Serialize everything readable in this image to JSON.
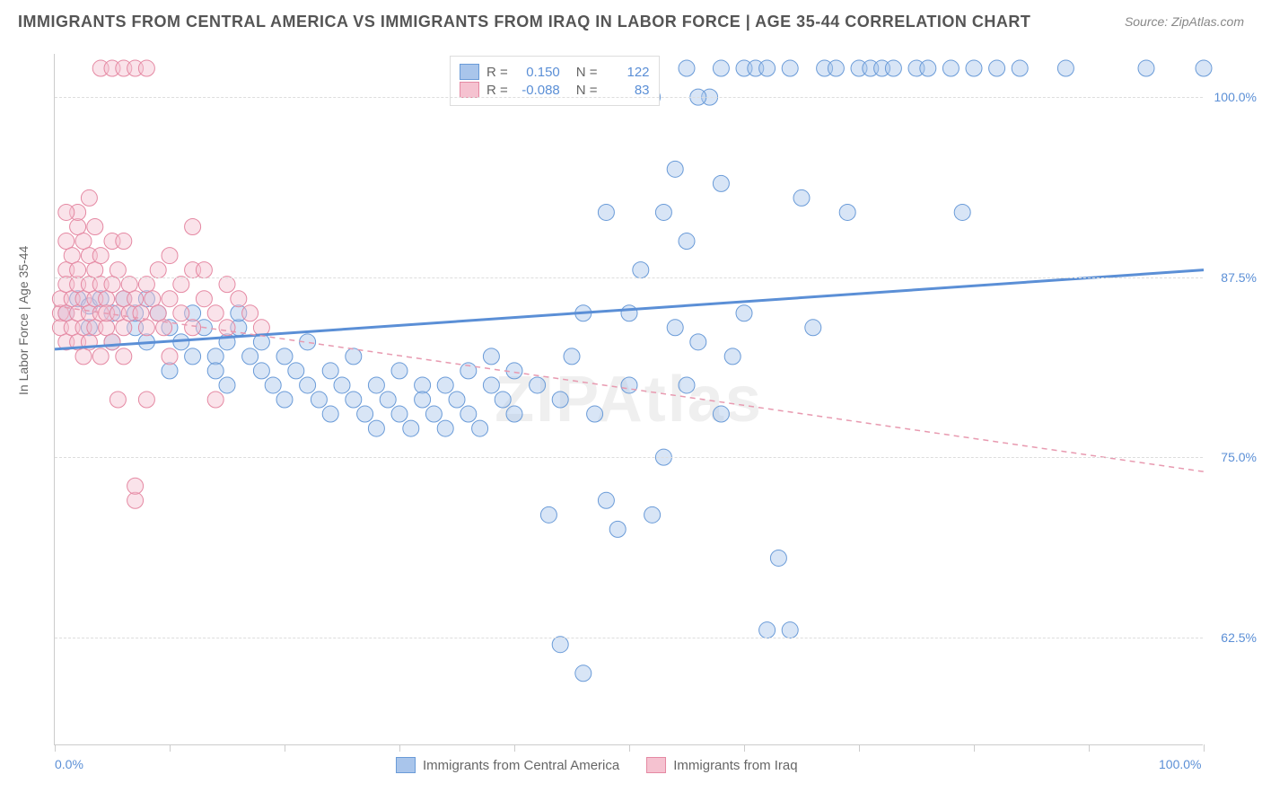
{
  "title": "IMMIGRANTS FROM CENTRAL AMERICA VS IMMIGRANTS FROM IRAQ IN LABOR FORCE | AGE 35-44 CORRELATION CHART",
  "source": "Source: ZipAtlas.com",
  "watermark": "ZIPAtlas",
  "y_axis_label": "In Labor Force | Age 35-44",
  "chart": {
    "type": "scatter",
    "background_color": "#ffffff",
    "grid_color": "#dddddd",
    "axis_color": "#cccccc",
    "text_color": "#666666",
    "value_color": "#5b8fd6",
    "xlim": [
      0,
      100
    ],
    "ylim": [
      55,
      103
    ],
    "x_ticks": [
      0,
      10,
      20,
      30,
      40,
      50,
      60,
      70,
      80,
      90,
      100
    ],
    "x_axis_labels": [
      {
        "pos": 0,
        "label": "0.0%"
      },
      {
        "pos": 100,
        "label": "100.0%"
      }
    ],
    "y_gridlines": [
      {
        "val": 62.5,
        "label": "62.5%"
      },
      {
        "val": 75.0,
        "label": "75.0%"
      },
      {
        "val": 87.5,
        "label": "87.5%"
      },
      {
        "val": 100.0,
        "label": "100.0%"
      }
    ],
    "marker_radius": 9,
    "marker_opacity": 0.45,
    "series": [
      {
        "name": "Immigrants from Central America",
        "color": "#5b8fd6",
        "fill": "#a9c5eb",
        "stroke": "#6a9bd8",
        "R": "0.150",
        "N": "122",
        "trend": {
          "y_at_x0": 82.5,
          "y_at_x100": 88.0,
          "width": 3,
          "dash": "none"
        },
        "points": [
          [
            1,
            85
          ],
          [
            2,
            86
          ],
          [
            3,
            85.5
          ],
          [
            3,
            84
          ],
          [
            4,
            86
          ],
          [
            5,
            85
          ],
          [
            5,
            83
          ],
          [
            6,
            86
          ],
          [
            7,
            84
          ],
          [
            7,
            85
          ],
          [
            8,
            86
          ],
          [
            8,
            83
          ],
          [
            9,
            85
          ],
          [
            10,
            81
          ],
          [
            10,
            84
          ],
          [
            11,
            83
          ],
          [
            12,
            85
          ],
          [
            12,
            82
          ],
          [
            13,
            84
          ],
          [
            14,
            82
          ],
          [
            14,
            81
          ],
          [
            15,
            83
          ],
          [
            15,
            80
          ],
          [
            16,
            84
          ],
          [
            16,
            85
          ],
          [
            17,
            82
          ],
          [
            18,
            81
          ],
          [
            18,
            83
          ],
          [
            19,
            80
          ],
          [
            20,
            82
          ],
          [
            20,
            79
          ],
          [
            21,
            81
          ],
          [
            22,
            83
          ],
          [
            22,
            80
          ],
          [
            23,
            79
          ],
          [
            24,
            81
          ],
          [
            24,
            78
          ],
          [
            25,
            80
          ],
          [
            26,
            79
          ],
          [
            26,
            82
          ],
          [
            27,
            78
          ],
          [
            28,
            80
          ],
          [
            28,
            77
          ],
          [
            29,
            79
          ],
          [
            30,
            81
          ],
          [
            30,
            78
          ],
          [
            31,
            77
          ],
          [
            32,
            80
          ],
          [
            32,
            79
          ],
          [
            33,
            78
          ],
          [
            34,
            77
          ],
          [
            34,
            80
          ],
          [
            35,
            79
          ],
          [
            36,
            78
          ],
          [
            36,
            81
          ],
          [
            37,
            77
          ],
          [
            38,
            80
          ],
          [
            38,
            82
          ],
          [
            39,
            79
          ],
          [
            40,
            78
          ],
          [
            40,
            81
          ],
          [
            42,
            80
          ],
          [
            43,
            71
          ],
          [
            44,
            62
          ],
          [
            44,
            79
          ],
          [
            45,
            82
          ],
          [
            46,
            60
          ],
          [
            46,
            85
          ],
          [
            47,
            78
          ],
          [
            48,
            72
          ],
          [
            48,
            92
          ],
          [
            49,
            70
          ],
          [
            50,
            85
          ],
          [
            50,
            80
          ],
          [
            52,
            71
          ],
          [
            53,
            92
          ],
          [
            54,
            84
          ],
          [
            55,
            80
          ],
          [
            55,
            102
          ],
          [
            56,
            83
          ],
          [
            57,
            100
          ],
          [
            58,
            78
          ],
          [
            58,
            102
          ],
          [
            59,
            82
          ],
          [
            60,
            102
          ],
          [
            60,
            85
          ],
          [
            61,
            102
          ],
          [
            62,
            63
          ],
          [
            62,
            102
          ],
          [
            63,
            68
          ],
          [
            64,
            102
          ],
          [
            65,
            93
          ],
          [
            66,
            84
          ],
          [
            67,
            102
          ],
          [
            68,
            102
          ],
          [
            69,
            92
          ],
          [
            70,
            102
          ],
          [
            71,
            102
          ],
          [
            72,
            102
          ],
          [
            73,
            102
          ],
          [
            75,
            102
          ],
          [
            76,
            102
          ],
          [
            78,
            102
          ],
          [
            79,
            92
          ],
          [
            80,
            102
          ],
          [
            82,
            102
          ],
          [
            84,
            102
          ],
          [
            88,
            102
          ],
          [
            95,
            102
          ],
          [
            100,
            102
          ],
          [
            47,
            100
          ],
          [
            48,
            100
          ],
          [
            52,
            100
          ],
          [
            54,
            95
          ],
          [
            56,
            100
          ],
          [
            58,
            94
          ],
          [
            64,
            63
          ],
          [
            49,
            100
          ],
          [
            51,
            88
          ],
          [
            53,
            75
          ],
          [
            44,
            100
          ],
          [
            55,
            90
          ]
        ]
      },
      {
        "name": "Immigrants from Iraq",
        "color": "#e89ab0",
        "fill": "#f5c2d0",
        "stroke": "#e589a3",
        "R": "-0.088",
        "N": "83",
        "trend": {
          "y_at_x0": 85.5,
          "y_at_x100": 74.0,
          "width": 1.5,
          "dash": "6,5"
        },
        "points": [
          [
            0.5,
            85
          ],
          [
            0.5,
            86
          ],
          [
            0.5,
            84
          ],
          [
            1,
            88
          ],
          [
            1,
            87
          ],
          [
            1,
            85
          ],
          [
            1,
            83
          ],
          [
            1,
            90
          ],
          [
            1.5,
            86
          ],
          [
            1.5,
            84
          ],
          [
            1.5,
            89
          ],
          [
            2,
            85
          ],
          [
            2,
            87
          ],
          [
            2,
            91
          ],
          [
            2,
            83
          ],
          [
            2,
            88
          ],
          [
            2.5,
            86
          ],
          [
            2.5,
            84
          ],
          [
            2.5,
            90
          ],
          [
            2.5,
            82
          ],
          [
            3,
            87
          ],
          [
            3,
            85
          ],
          [
            3,
            89
          ],
          [
            3,
            83
          ],
          [
            3.5,
            86
          ],
          [
            3.5,
            88
          ],
          [
            3.5,
            84
          ],
          [
            3.5,
            91
          ],
          [
            4,
            87
          ],
          [
            4,
            85
          ],
          [
            4,
            82
          ],
          [
            4,
            89
          ],
          [
            4.5,
            86
          ],
          [
            4.5,
            84
          ],
          [
            4.5,
            85
          ],
          [
            5,
            87
          ],
          [
            5,
            90
          ],
          [
            5,
            83
          ],
          [
            5.5,
            85
          ],
          [
            5.5,
            88
          ],
          [
            5.5,
            79
          ],
          [
            6,
            86
          ],
          [
            6,
            84
          ],
          [
            6,
            82
          ],
          [
            6.5,
            87
          ],
          [
            6.5,
            85
          ],
          [
            7,
            72
          ],
          [
            7,
            86
          ],
          [
            7,
            73
          ],
          [
            7.5,
            85
          ],
          [
            8,
            87
          ],
          [
            8,
            84
          ],
          [
            8,
            79
          ],
          [
            8.5,
            86
          ],
          [
            9,
            85
          ],
          [
            9,
            88
          ],
          [
            9.5,
            84
          ],
          [
            10,
            86
          ],
          [
            10,
            89
          ],
          [
            10,
            82
          ],
          [
            11,
            85
          ],
          [
            11,
            87
          ],
          [
            12,
            91
          ],
          [
            12,
            84
          ],
          [
            12,
            88
          ],
          [
            13,
            86
          ],
          [
            14,
            85
          ],
          [
            14,
            79
          ],
          [
            15,
            84
          ],
          [
            15,
            87
          ],
          [
            16,
            86
          ],
          [
            17,
            85
          ],
          [
            18,
            84
          ],
          [
            4,
            102
          ],
          [
            5,
            102
          ],
          [
            6,
            102
          ],
          [
            7,
            102
          ],
          [
            8,
            102
          ],
          [
            2,
            92
          ],
          [
            3,
            93
          ],
          [
            1,
            92
          ],
          [
            13,
            88
          ],
          [
            6,
            90
          ]
        ]
      }
    ]
  },
  "legend_bottom": [
    {
      "swatch_fill": "#a9c5eb",
      "swatch_stroke": "#6a9bd8",
      "label": "Immigrants from Central America"
    },
    {
      "swatch_fill": "#f5c2d0",
      "swatch_stroke": "#e589a3",
      "label": "Immigrants from Iraq"
    }
  ],
  "legend_top_labels": {
    "R": "R =",
    "N": "N ="
  }
}
